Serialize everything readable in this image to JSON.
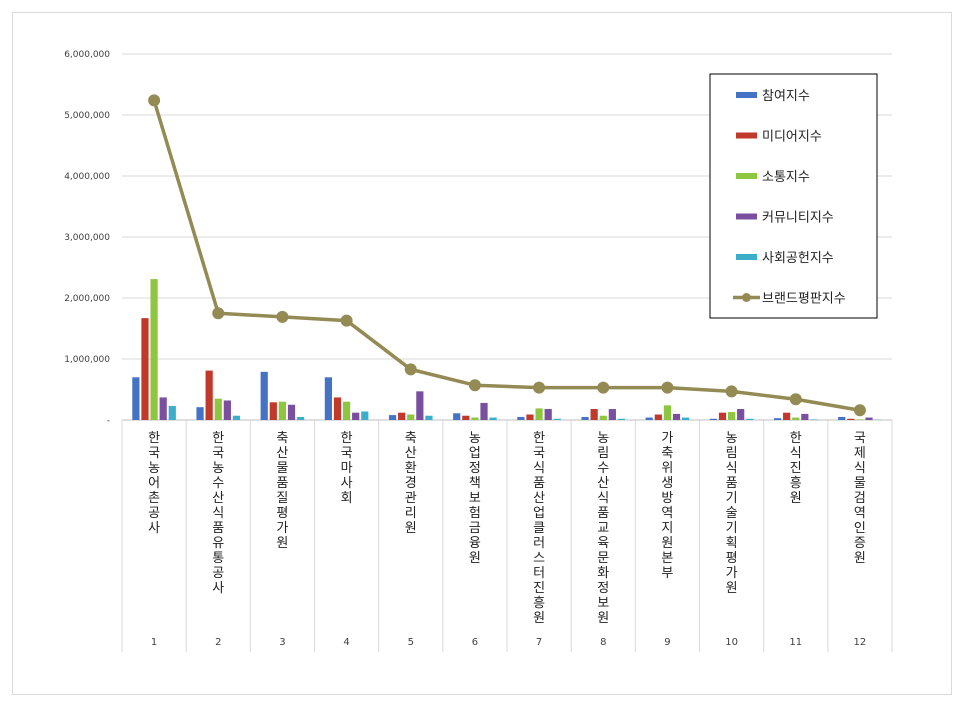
{
  "chart_data": {
    "type": "bar",
    "y_ticks": [
      "6,000,000",
      "5,000,000",
      "4,000,000",
      "3,000,000",
      "2,000,000",
      "1,000,000",
      "-"
    ],
    "ylim": [
      0,
      6000000
    ],
    "grid": true,
    "legend_position": "top-right",
    "categories": [
      {
        "index": "1",
        "name": "한국농어촌공사"
      },
      {
        "index": "2",
        "name": "한국농수산식품유통공사"
      },
      {
        "index": "3",
        "name": "축산물품질평가원"
      },
      {
        "index": "4",
        "name": "한국마사회"
      },
      {
        "index": "5",
        "name": "축산환경관리원"
      },
      {
        "index": "6",
        "name": "농업정책보험금융원"
      },
      {
        "index": "7",
        "name": "한국식품산업클러스터진흥원"
      },
      {
        "index": "8",
        "name": "농림수산식품교육문화정보원"
      },
      {
        "index": "9",
        "name": "가축위생방역지원본부"
      },
      {
        "index": "10",
        "name": "농림식품기술기획평가원"
      },
      {
        "index": "11",
        "name": "한식진흥원"
      },
      {
        "index": "12",
        "name": "국제식물검역인증원"
      }
    ],
    "series": [
      {
        "name": "참여지수",
        "type": "bar",
        "color": "#4472C4",
        "values": [
          700000,
          210000,
          790000,
          700000,
          80000,
          110000,
          50000,
          50000,
          40000,
          20000,
          30000,
          50000
        ]
      },
      {
        "name": "미디어지수",
        "type": "bar",
        "color": "#C0392B",
        "values": [
          1670000,
          810000,
          290000,
          370000,
          120000,
          70000,
          90000,
          180000,
          90000,
          120000,
          120000,
          20000
        ]
      },
      {
        "name": "소통지수",
        "type": "bar",
        "color": "#8DC63F",
        "values": [
          2310000,
          350000,
          300000,
          300000,
          90000,
          40000,
          190000,
          70000,
          240000,
          130000,
          40000,
          10000
        ]
      },
      {
        "name": "커뮤니티지수",
        "type": "bar",
        "color": "#7A4FA0",
        "values": [
          370000,
          320000,
          250000,
          120000,
          470000,
          280000,
          180000,
          180000,
          100000,
          180000,
          100000,
          40000
        ]
      },
      {
        "name": "사회공헌지수",
        "type": "bar",
        "color": "#3BAFC9",
        "values": [
          230000,
          70000,
          50000,
          140000,
          70000,
          40000,
          20000,
          20000,
          40000,
          20000,
          10000,
          5000
        ]
      },
      {
        "name": "브랜드평판지수",
        "type": "line",
        "color": "#948A54",
        "values": [
          5240000,
          1750000,
          1690000,
          1630000,
          830000,
          570000,
          530000,
          530000,
          530000,
          470000,
          340000,
          160000
        ]
      }
    ]
  }
}
